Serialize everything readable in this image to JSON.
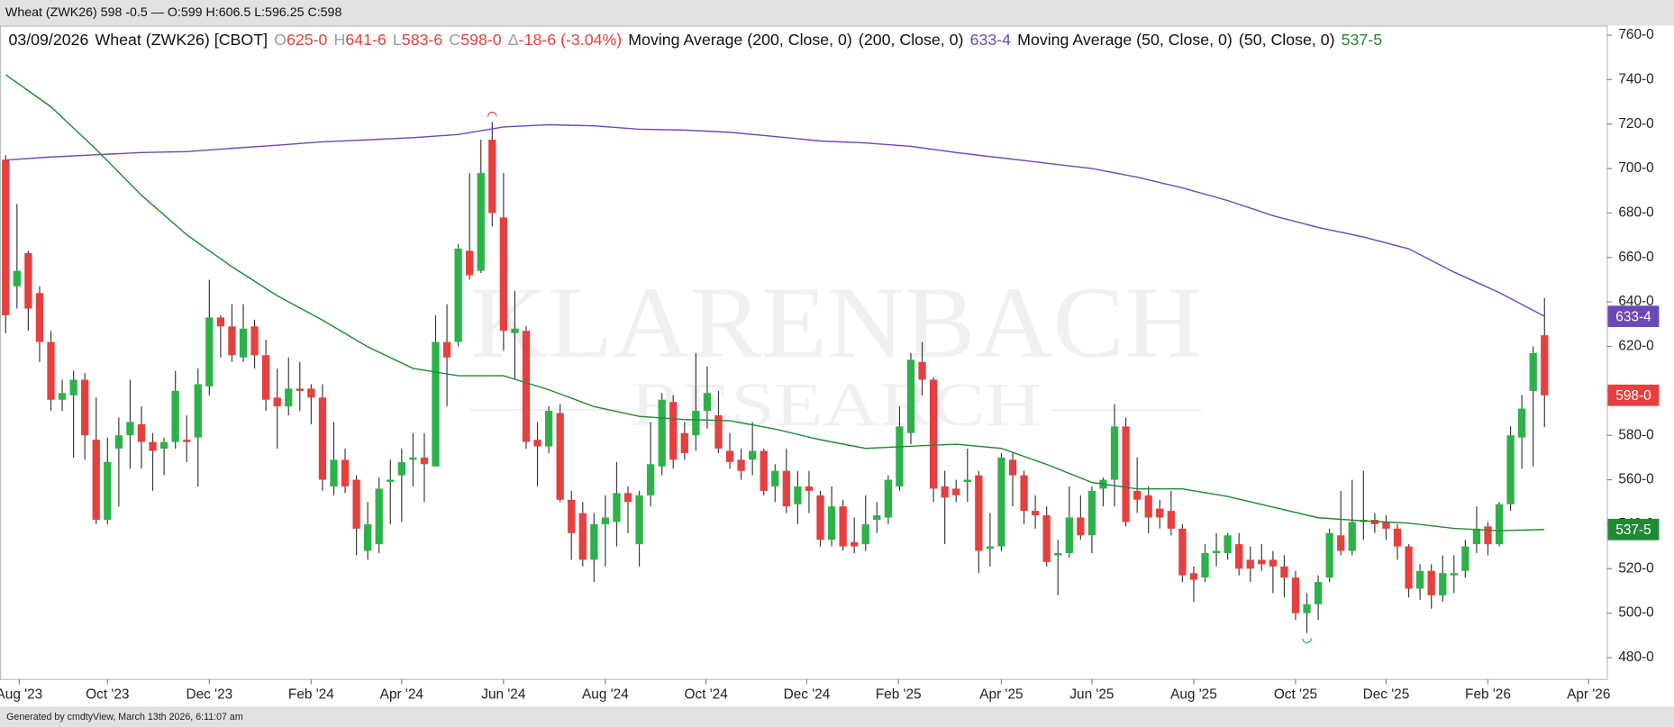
{
  "chart_data": {
    "type": "candlestick",
    "window_title": "Wheat (ZWK26) 598 -0.5 — O:599 H:606.5 L:596.25 C:598",
    "footer": "Generated by cmdtyView, March 13th 2026, 6:11:07 am",
    "watermark": [
      "KLARENBACH",
      "RESEARCH"
    ],
    "quote": {
      "date": "03/09/2026",
      "symbol": "Wheat (ZWK26) [CBOT]",
      "fields": [
        {
          "prefix": "O",
          "text": "625-0"
        },
        {
          "prefix": "H",
          "text": "641-6"
        },
        {
          "prefix": "L",
          "text": "583-6"
        },
        {
          "prefix": "C",
          "text": "598-0"
        },
        {
          "prefix": "Δ",
          "text": "-18-6 (-3.04%)"
        }
      ]
    },
    "up_color": "#2db24a",
    "down_color": "#e5403f",
    "open": [
      704,
      647,
      662,
      644,
      622,
      596,
      598,
      605,
      578,
      542,
      574,
      580,
      585,
      577,
      574,
      577,
      578,
      579,
      602,
      633,
      629,
      615,
      629,
      616,
      597,
      593,
      601,
      601,
      597,
      557,
      569,
      560,
      528,
      531,
      559,
      562,
      569,
      570,
      566,
      622,
      622,
      663,
      654,
      713,
      678,
      626,
      627,
      578,
      575,
      590,
      551,
      545,
      524,
      540,
      541,
      554,
      531,
      553,
      566,
      595,
      581,
      580,
      591,
      589,
      573,
      569,
      569,
      573,
      557,
      564,
      549,
      557,
      553,
      533,
      548,
      532,
      531,
      542,
      543,
      557,
      581,
      613,
      605,
      557,
      556,
      559,
      562,
      529,
      530,
      569,
      562,
      546,
      544,
      526,
      527,
      543,
      535,
      556,
      560,
      584,
      555,
      553,
      547,
      546,
      538,
      518,
      516,
      527,
      527,
      531,
      524,
      524,
      524,
      521,
      516,
      500,
      504,
      516,
      535,
      528,
      541,
      542,
      541,
      538,
      530,
      511,
      519,
      508,
      517,
      519,
      531,
      539,
      531,
      549,
      579,
      600,
      625
    ],
    "high": [
      706,
      684,
      663,
      647,
      627,
      605,
      609,
      608,
      597,
      579,
      588,
      605,
      593,
      581,
      579,
      609,
      589,
      610,
      650,
      634,
      639,
      639,
      632,
      623,
      610,
      615,
      613,
      603,
      603,
      586,
      574,
      562,
      550,
      561,
      569,
      574,
      581,
      581,
      634,
      639,
      666,
      698,
      713,
      721,
      698,
      645,
      629,
      586,
      593,
      594,
      555,
      550,
      545,
      553,
      568,
      557,
      555,
      586,
      599,
      598,
      586,
      617,
      611,
      600,
      581,
      574,
      586,
      574,
      567,
      574,
      564,
      564,
      555,
      557,
      551,
      543,
      553,
      550,
      562,
      593,
      617,
      622,
      606,
      564,
      560,
      574,
      564,
      545,
      572,
      572,
      564,
      553,
      548,
      533,
      557,
      553,
      557,
      561,
      594,
      588,
      570,
      557,
      551,
      555,
      540,
      521,
      531,
      536,
      536,
      536,
      530,
      531,
      528,
      526,
      519,
      509,
      517,
      538,
      555,
      560,
      564,
      545,
      544,
      540,
      531,
      522,
      522,
      526,
      526,
      533,
      548,
      541,
      550,
      584,
      598,
      620,
      641.75
    ],
    "low": [
      626,
      637,
      627,
      613,
      591,
      591,
      570,
      569,
      540,
      540,
      548,
      565,
      565,
      555,
      562,
      574,
      568,
      557,
      598,
      615,
      613,
      613,
      610,
      591,
      574,
      589,
      591,
      585,
      555,
      553,
      554,
      526,
      524,
      527,
      540,
      541,
      557,
      550,
      566,
      593,
      620,
      650,
      653,
      674,
      618,
      605,
      574,
      557,
      572,
      550,
      524,
      521,
      514,
      521,
      530,
      536,
      521,
      548,
      562,
      565,
      569,
      573,
      583,
      572,
      565,
      560,
      562,
      553,
      550,
      545,
      540,
      545,
      530,
      530,
      528,
      527,
      528,
      536,
      540,
      555,
      576,
      598,
      550,
      531,
      550,
      550,
      518,
      521,
      528,
      548,
      540,
      538,
      521,
      508,
      525,
      533,
      527,
      548,
      548,
      539,
      545,
      536,
      538,
      535,
      514,
      505,
      514,
      521,
      524,
      517,
      514,
      519,
      509,
      507,
      497,
      491,
      497,
      514,
      526,
      526,
      533,
      536,
      533,
      524,
      507,
      506,
      502,
      505,
      509,
      516,
      527,
      526,
      530,
      546,
      565,
      566,
      583.75
    ],
    "close": [
      634,
      654,
      637,
      622,
      596,
      599,
      605,
      580,
      542,
      568,
      580,
      586,
      577,
      573,
      577,
      600,
      577,
      603,
      633,
      629,
      616,
      628,
      616,
      596,
      593,
      601,
      600,
      597,
      560,
      569,
      557,
      538,
      540,
      556,
      560,
      568,
      570,
      567,
      622,
      615,
      664,
      652,
      698,
      680,
      627,
      628,
      577,
      575,
      591,
      551,
      536,
      524,
      540,
      543,
      554,
      550,
      553,
      567,
      596,
      569,
      572,
      591,
      599,
      574,
      568,
      564,
      573,
      555,
      564,
      548,
      557,
      555,
      533,
      548,
      530,
      530,
      540,
      544,
      560,
      584,
      614,
      605,
      556,
      552,
      553,
      560,
      528,
      530,
      570,
      562,
      546,
      544,
      523,
      527,
      543,
      535,
      555,
      560,
      584,
      541,
      551,
      543,
      543,
      538,
      517,
      515,
      527,
      528,
      535,
      520,
      520,
      522,
      521,
      516,
      500,
      504,
      514,
      536,
      528,
      541,
      542,
      540,
      538,
      530,
      511,
      519,
      508,
      518,
      518,
      530,
      538,
      531,
      549,
      580,
      592,
      617,
      598
    ],
    "last_label": "598-0",
    "series": [
      {
        "name": "Moving Average (200, Close, 0)",
        "params": "(200, Close, 0)",
        "color": "#6b48b8",
        "last_label": "633-4",
        "x": [
          0,
          4,
          8,
          12,
          16,
          20,
          24,
          28,
          32,
          36,
          40,
          44,
          48,
          52,
          56,
          60,
          64,
          68,
          72,
          76,
          80,
          84,
          88,
          92,
          96,
          100,
          104,
          108,
          112,
          116,
          120,
          124,
          128,
          132,
          136
        ],
        "values": [
          703.8,
          705.2,
          706.2,
          707.2,
          707.6,
          709.1,
          710.5,
          712.0,
          712.9,
          713.9,
          715.3,
          718.7,
          719.7,
          719.2,
          717.7,
          717.3,
          716.3,
          714.4,
          712.4,
          711.5,
          710.0,
          707.2,
          704.8,
          702.4,
          700.0,
          696.1,
          691.3,
          685.6,
          678.8,
          673.5,
          669.2,
          663.9,
          653.4,
          644.2,
          633.5
        ]
      },
      {
        "name": "Moving Average (50, Close, 0)",
        "params": "(50, Close, 0)",
        "color": "#1f8a35",
        "last_label": "537-5",
        "x": [
          0,
          4,
          8,
          12,
          16,
          20,
          24,
          28,
          32,
          36,
          40,
          44,
          48,
          52,
          56,
          60,
          64,
          68,
          72,
          76,
          80,
          84,
          88,
          92,
          96,
          100,
          104,
          108,
          112,
          116,
          120,
          124,
          128,
          132,
          136
        ],
        "values": [
          742.2,
          727.8,
          708.6,
          688.0,
          670.2,
          655.8,
          642.8,
          631.8,
          619.8,
          610.1,
          606.8,
          606.8,
          600.5,
          592.9,
          588.5,
          587.1,
          586.6,
          582.8,
          578.0,
          574.1,
          575.1,
          576.0,
          574.1,
          566.9,
          558.8,
          555.9,
          555.9,
          552.5,
          547.7,
          542.9,
          541.5,
          540.5,
          538.1,
          537.1,
          537.625
        ]
      }
    ],
    "xlim": [
      -0.5,
      141.5
    ],
    "xticks": [
      {
        "value": 1.2,
        "label": "Aug '23"
      },
      {
        "value": 9.0,
        "label": "Oct '23"
      },
      {
        "value": 18.0,
        "label": "Dec '23"
      },
      {
        "value": 27.0,
        "label": "Feb '24"
      },
      {
        "value": 35.0,
        "label": "Apr '24"
      },
      {
        "value": 44.0,
        "label": "Jun '24"
      },
      {
        "value": 53.0,
        "label": "Aug '24"
      },
      {
        "value": 61.9,
        "label": "Oct '24"
      },
      {
        "value": 70.8,
        "label": "Dec '24"
      },
      {
        "value": 78.9,
        "label": "Feb '25"
      },
      {
        "value": 88.0,
        "label": "Apr '25"
      },
      {
        "value": 96.0,
        "label": "Jun '25"
      },
      {
        "value": 105.0,
        "label": "Aug '25"
      },
      {
        "value": 114.0,
        "label": "Oct '25"
      },
      {
        "value": 122.0,
        "label": "Dec '25"
      },
      {
        "value": 131.0,
        "label": "Feb '26"
      },
      {
        "value": 139.9,
        "label": "Apr '26"
      }
    ],
    "ylim": [
      470.4,
      763.8
    ],
    "yticks": [
      {
        "value": 480,
        "label": "480-0"
      },
      {
        "value": 500,
        "label": "500-0"
      },
      {
        "value": 520,
        "label": "520-0"
      },
      {
        "value": 540,
        "label": "540-0"
      },
      {
        "value": 560,
        "label": "560-0"
      },
      {
        "value": 580,
        "label": "580-0"
      },
      {
        "value": 600,
        "label": "600-0"
      },
      {
        "value": 620,
        "label": "620-0"
      },
      {
        "value": 640,
        "label": "640-0"
      },
      {
        "value": 660,
        "label": "660-0"
      },
      {
        "value": 680,
        "label": "680-0"
      },
      {
        "value": 700,
        "label": "700-0"
      },
      {
        "value": 720,
        "label": "720-0"
      },
      {
        "value": 740,
        "label": "740-0"
      },
      {
        "value": 760,
        "label": "760-0"
      }
    ]
  }
}
